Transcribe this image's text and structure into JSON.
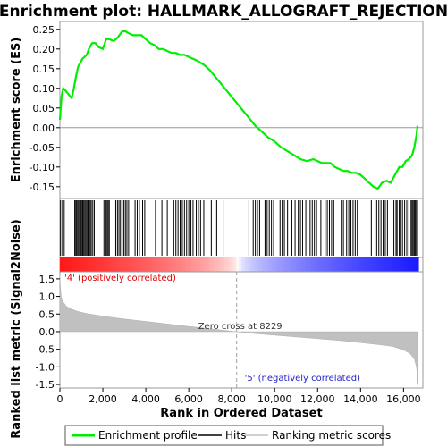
{
  "chart_data": {
    "type": "line",
    "title": "Enrichment plot: HALLMARK_ALLOGRAFT_REJECTION",
    "top_panel": {
      "ylabel": "Enrichment score (ES)",
      "ylim": [
        -0.18,
        0.27
      ],
      "yticks": [
        "0.25",
        "0.20",
        "0.15",
        "0.10",
        "0.05",
        "0.00",
        "-0.05",
        "-0.10",
        "-0.15"
      ],
      "ytick_values": [
        0.25,
        0.2,
        0.15,
        0.1,
        0.05,
        0.0,
        -0.05,
        -0.1,
        -0.15
      ],
      "series": {
        "name": "Enrichment profile",
        "color": "#00ee00",
        "x": [
          0,
          80,
          150,
          250,
          400,
          550,
          650,
          750,
          850,
          950,
          1050,
          1150,
          1250,
          1350,
          1500,
          1650,
          1800,
          2000,
          2150,
          2300,
          2500,
          2700,
          2900,
          3050,
          3200,
          3400,
          3600,
          3800,
          4000,
          4200,
          4400,
          4600,
          4800,
          5000,
          5200,
          5400,
          5600,
          5800,
          6000,
          6200,
          6400,
          6700,
          7000,
          7300,
          7600,
          7900,
          8200,
          8500,
          8800,
          9100,
          9400,
          9700,
          10000,
          10300,
          10600,
          10900,
          11200,
          11500,
          11800,
          12000,
          12200,
          12400,
          12600,
          12800,
          13000,
          13200,
          13400,
          13600,
          13800,
          14000,
          14200,
          14400,
          14600,
          14800,
          15000,
          15200,
          15400,
          15600,
          15800,
          15950,
          16100,
          16250,
          16400,
          16500,
          16600,
          16650
        ],
        "y": [
          0.02,
          0.08,
          0.1,
          0.095,
          0.085,
          0.075,
          0.1,
          0.13,
          0.155,
          0.165,
          0.175,
          0.18,
          0.185,
          0.2,
          0.215,
          0.215,
          0.205,
          0.2,
          0.225,
          0.225,
          0.22,
          0.23,
          0.245,
          0.245,
          0.24,
          0.235,
          0.235,
          0.235,
          0.225,
          0.215,
          0.21,
          0.2,
          0.2,
          0.195,
          0.19,
          0.19,
          0.185,
          0.185,
          0.18,
          0.175,
          0.17,
          0.16,
          0.145,
          0.125,
          0.105,
          0.085,
          0.065,
          0.045,
          0.025,
          0.005,
          -0.01,
          -0.025,
          -0.035,
          -0.05,
          -0.06,
          -0.07,
          -0.08,
          -0.085,
          -0.08,
          -0.085,
          -0.09,
          -0.09,
          -0.09,
          -0.1,
          -0.105,
          -0.11,
          -0.11,
          -0.115,
          -0.115,
          -0.12,
          -0.13,
          -0.14,
          -0.15,
          -0.155,
          -0.14,
          -0.135,
          -0.14,
          -0.12,
          -0.1,
          -0.1,
          -0.085,
          -0.08,
          -0.07,
          -0.05,
          -0.02,
          0.005
        ]
      }
    },
    "hits": {
      "name": "Hits",
      "positions": [
        30,
        120,
        200,
        690,
        740,
        780,
        830,
        880,
        930,
        970,
        1010,
        1060,
        1110,
        1160,
        1210,
        1260,
        1310,
        1360,
        1410,
        1460,
        1530,
        1600,
        2050,
        2100,
        2150,
        2200,
        2250,
        2300,
        2600,
        2680,
        2750,
        2820,
        2900,
        2980,
        3050,
        3120,
        3200,
        3500,
        3600,
        3700,
        3850,
        3950,
        4100,
        4450,
        4750,
        5000,
        5300,
        5400,
        5500,
        5600,
        5700,
        5800,
        5900,
        6000,
        6100,
        6200,
        6350,
        6450,
        6550,
        6700,
        7050,
        7300,
        7600,
        8800,
        9000,
        9100,
        9200,
        9300,
        9550,
        9650,
        9750,
        9850,
        9950,
        10250,
        10350,
        10450,
        10600,
        10800,
        10950,
        11100,
        11200,
        11300,
        11450,
        11550,
        11650,
        11750,
        11850,
        11950,
        12150,
        12350,
        12450,
        12550,
        12650,
        12750,
        13100,
        13200,
        13350,
        13450,
        13550,
        13650,
        13750,
        13850,
        14500,
        14750,
        14850,
        14950,
        15050,
        15150,
        15250,
        15550,
        15650,
        15700,
        15800,
        15850,
        15950,
        16050,
        16150,
        16250,
        16350,
        16400,
        16450,
        16500,
        16550,
        16600,
        16650
      ]
    },
    "bottom_panel": {
      "name": "Ranking metric scores",
      "ylabel": "Ranked list metric (Signal2Noise)",
      "ylim": [
        -1.6,
        1.7
      ],
      "yticks": [
        "1.5",
        "1.0",
        "0.5",
        "0.0",
        "-0.5",
        "-1.0",
        "-1.5"
      ],
      "ytick_values": [
        1.5,
        1.0,
        0.5,
        0.0,
        -0.5,
        -1.0,
        -1.5
      ],
      "x": [
        0,
        20,
        60,
        150,
        300,
        500,
        800,
        1200,
        2000,
        3000,
        4000,
        5000,
        6000,
        7000,
        8229,
        9000,
        10000,
        11000,
        12000,
        13000,
        14000,
        15000,
        15500,
        16000,
        16300,
        16500,
        16600,
        16680
      ],
      "y": [
        1.6,
        1.3,
        1.0,
        0.85,
        0.72,
        0.65,
        0.58,
        0.52,
        0.44,
        0.36,
        0.29,
        0.22,
        0.15,
        0.08,
        0.0,
        -0.05,
        -0.1,
        -0.15,
        -0.2,
        -0.25,
        -0.31,
        -0.38,
        -0.42,
        -0.52,
        -0.62,
        -0.78,
        -1.0,
        -1.5
      ],
      "annotations": {
        "pos": "'4' (positively correlated)",
        "neg": "'5' (negatively correlated)",
        "zero": "Zero cross at 8229",
        "zero_x": 8229
      },
      "pos_color": "#ff0000",
      "neg_color": "#0000cc"
    },
    "xaxis": {
      "label": "Rank in Ordered Dataset",
      "xlim": [
        0,
        16900
      ],
      "xticks": [
        "0",
        "2,000",
        "4,000",
        "6,000",
        "8,000",
        "10,000",
        "12,000",
        "14,000",
        "16,000"
      ],
      "xtick_values": [
        0,
        2000,
        4000,
        6000,
        8000,
        10000,
        12000,
        14000,
        16000
      ],
      "n_total": 16690
    },
    "legend": {
      "placement": "bottom",
      "items": [
        {
          "label": "Enrichment profile",
          "color": "#00ee00",
          "kind": "thick-line"
        },
        {
          "label": "Hits",
          "color": "#000000",
          "kind": "line"
        },
        {
          "label": "Ranking metric scores",
          "color": "#c0c0c0",
          "kind": "line"
        }
      ]
    }
  }
}
